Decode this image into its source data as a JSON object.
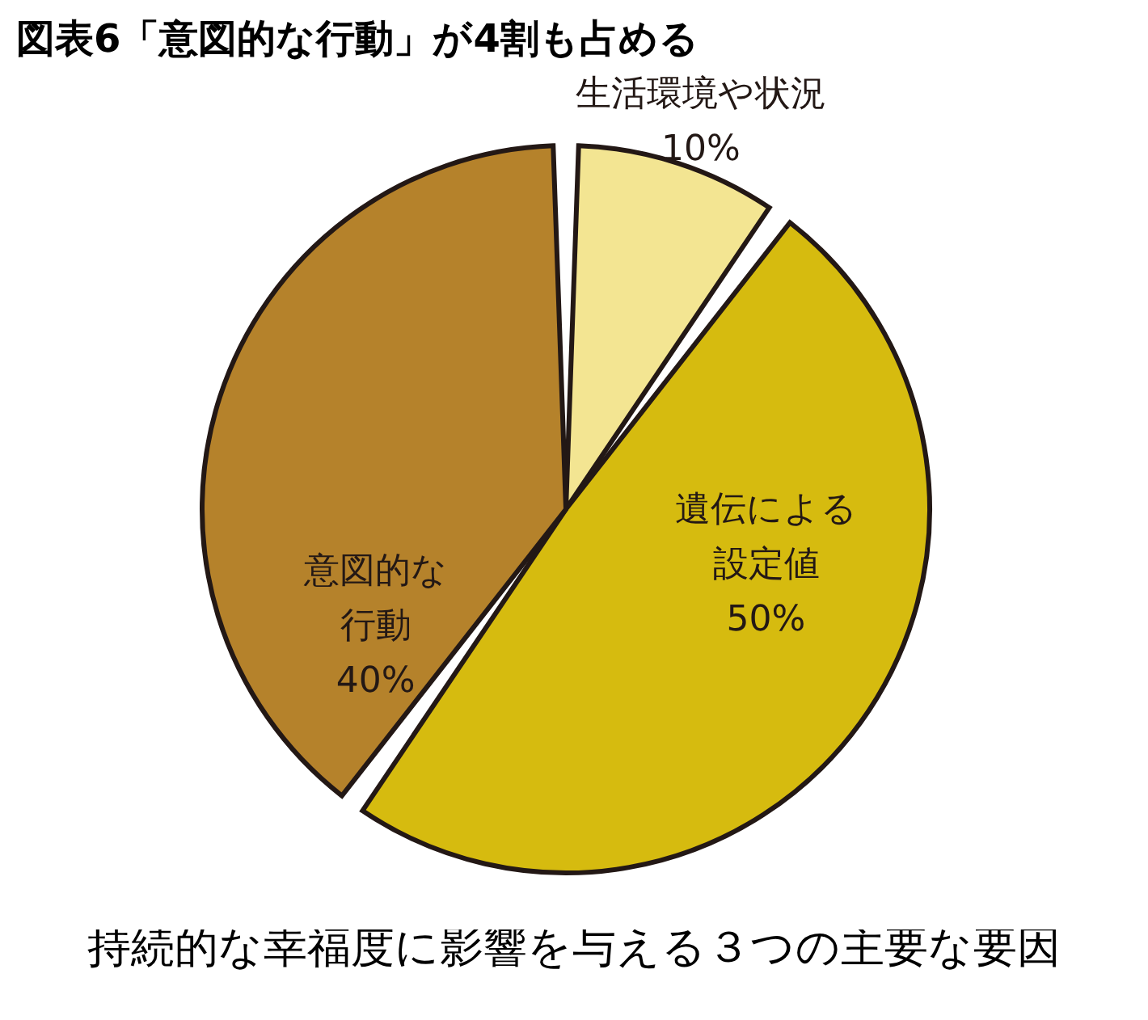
{
  "chart_data": {
    "type": "pie",
    "title": "図表6「意図的な行動」が4割も占める",
    "categories": [
      "生活環境や状況",
      "遺伝による設定値",
      "意図的な行動"
    ],
    "values": [
      10,
      50,
      40
    ],
    "colors": [
      "#f3e592",
      "#d6bb0f",
      "#b5822b"
    ],
    "value_labels": [
      "10%",
      "50%",
      "40%"
    ],
    "annotations": [
      "持続的な幸福度に影響を与える３つの主要な要因"
    ],
    "legend": false
  }
}
